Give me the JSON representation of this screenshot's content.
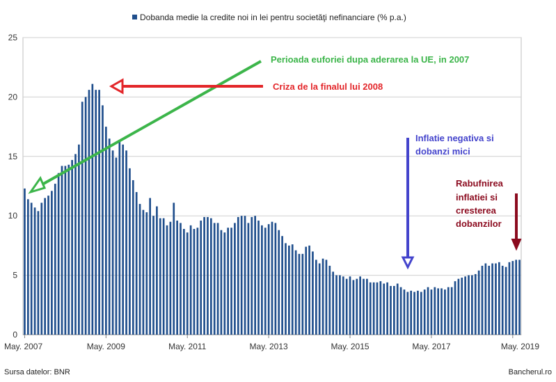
{
  "chart_data": {
    "type": "bar",
    "title": "",
    "series": [
      {
        "name": "Dobanda medie la credite noi in lei pentru societăţi nefinanciare (% p.a.)",
        "color": "#1f4e8c",
        "values": [
          12.3,
          11.4,
          11.1,
          10.7,
          10.4,
          11.1,
          11.5,
          11.7,
          12.1,
          12.7,
          13.6,
          14.2,
          14.2,
          14.3,
          14.7,
          15.2,
          16.0,
          19.6,
          20.0,
          20.6,
          21.1,
          20.6,
          20.6,
          19.3,
          17.5,
          16.5,
          15.5,
          14.9,
          16.3,
          16.0,
          15.5,
          14.0,
          13.0,
          12.0,
          11.0,
          10.5,
          10.3,
          11.5,
          10.0,
          10.8,
          9.8,
          9.8,
          9.2,
          9.5,
          11.1,
          9.6,
          9.4,
          8.9,
          8.6,
          9.2,
          8.9,
          9.0,
          9.6,
          9.9,
          9.9,
          9.8,
          9.4,
          9.4,
          8.8,
          8.6,
          9.0,
          9.0,
          9.4,
          9.9,
          10.0,
          10.0,
          9.4,
          9.9,
          10.0,
          9.6,
          9.2,
          9.0,
          9.3,
          9.5,
          9.4,
          8.8,
          8.3,
          7.7,
          7.5,
          7.6,
          7.1,
          6.8,
          6.8,
          7.4,
          7.5,
          7.0,
          6.3,
          6.0,
          6.4,
          6.3,
          5.8,
          5.3,
          5.0,
          5.0,
          4.9,
          4.7,
          4.9,
          4.6,
          4.7,
          4.9,
          4.7,
          4.7,
          4.4,
          4.4,
          4.4,
          4.5,
          4.3,
          4.4,
          4.1,
          4.1,
          4.3,
          4.0,
          3.8,
          3.6,
          3.7,
          3.6,
          3.7,
          3.6,
          3.8,
          4.0,
          3.8,
          4.0,
          3.9,
          3.9,
          3.8,
          4.0,
          4.0,
          4.5,
          4.7,
          4.8,
          4.9,
          5.0,
          5.0,
          5.1,
          5.4,
          5.8,
          6.0,
          5.8,
          6.0,
          6.0,
          6.1,
          5.8,
          5.7,
          6.1,
          6.2,
          6.3,
          6.3
        ]
      }
    ],
    "x_tick_labels": [
      "May. 2007",
      "May. 2009",
      "May. 2011",
      "May. 2013",
      "May. 2015",
      "May. 2017",
      "May. 2019"
    ],
    "y_ticks": [
      0,
      5,
      10,
      15,
      20,
      25
    ],
    "ylim": [
      0,
      25
    ],
    "xlabel": "",
    "ylabel": "",
    "grid": true,
    "legend_position": "top",
    "annotations": [
      {
        "text": "Perioada euforiei dupa aderarea la UE, in 2007",
        "color": "#3cb54a"
      },
      {
        "text": "Criza de la finalul lui 2008",
        "color": "#e3262a"
      },
      {
        "text_lines": [
          "Inflatie negativa si",
          "dobanzi mici"
        ],
        "color": "#4444cc"
      },
      {
        "text_lines": [
          "Rabufnirea",
          "inflatiei si",
          "cresterea",
          "dobanzilor"
        ],
        "color": "#8b0a1e"
      }
    ]
  },
  "footer": {
    "source": "Sursa datelor: BNR",
    "brand": "Bancherul.ro"
  }
}
